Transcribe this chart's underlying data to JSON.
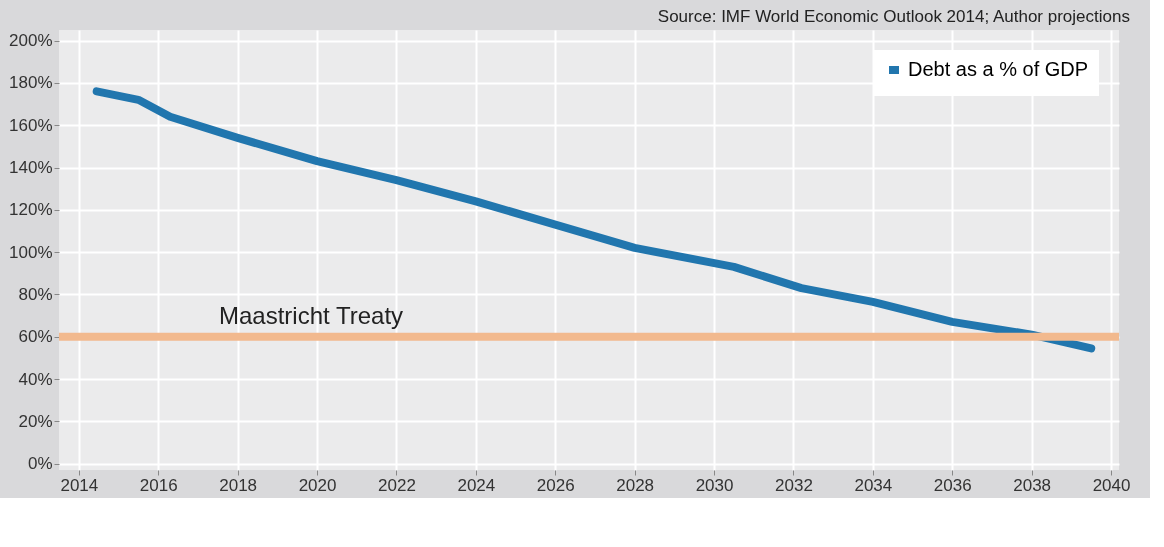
{
  "chart_data": {
    "type": "line",
    "annotations": [
      "Source: IMF World Economic Outlook 2014; Author projections"
    ],
    "x": [
      2014.45,
      2015.5,
      2016.3,
      2018,
      2020,
      2022,
      2024,
      2026,
      2028,
      2030.5,
      2032.2,
      2034,
      2036,
      2038,
      2039.5
    ],
    "series": [
      {
        "name": "Debt as a % of GDP",
        "color": "#2176ae",
        "values": [
          176,
          172,
          164,
          154,
          143,
          134,
          124,
          113,
          102,
          93,
          83,
          76.5,
          67,
          61,
          54.5
        ]
      }
    ],
    "xlim": [
      2013.5,
      2040.2
    ],
    "xticks": [
      2014,
      2016,
      2018,
      2020,
      2022,
      2024,
      2026,
      2028,
      2030,
      2032,
      2034,
      2036,
      2038,
      2040
    ],
    "ylim": [
      -3,
      205
    ],
    "yticks": [
      {
        "value": 0,
        "label": "0%"
      },
      {
        "value": 20,
        "label": "20%"
      },
      {
        "value": 40,
        "label": "40%"
      },
      {
        "value": 60,
        "label": "60%"
      },
      {
        "value": 80,
        "label": "80%"
      },
      {
        "value": 100,
        "label": "100%"
      },
      {
        "value": 120,
        "label": "120%"
      },
      {
        "value": 140,
        "label": "140%"
      },
      {
        "value": 160,
        "label": "160%"
      },
      {
        "value": 180,
        "label": "180%"
      },
      {
        "value": 200,
        "label": "200%"
      }
    ],
    "ref_lines": [
      {
        "axis": "y",
        "value": 60,
        "label": "Maastricht Treaty",
        "color": "#f2b98e"
      }
    ],
    "grid": true,
    "legend": "top right",
    "line_style": "solid",
    "marker": "none"
  }
}
